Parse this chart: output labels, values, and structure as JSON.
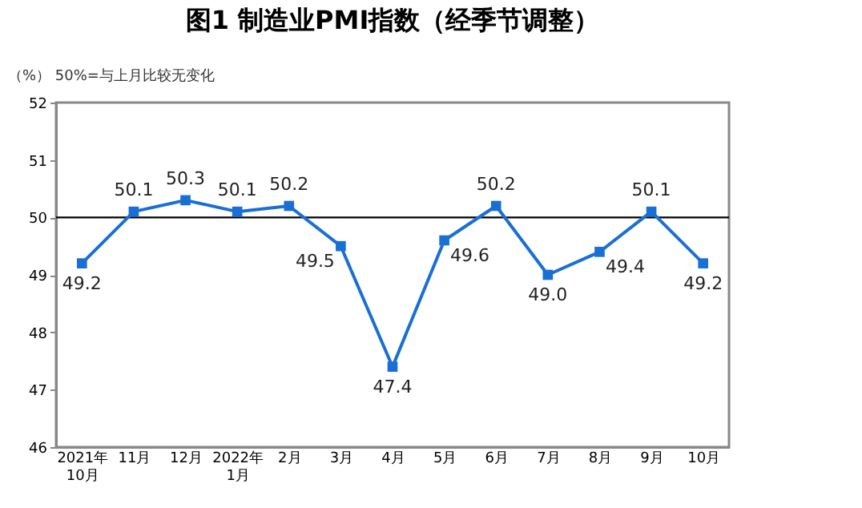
{
  "chart_data": {
    "type": "line",
    "title": "图1 制造业PMI指数（经季节调整）",
    "ylabel": "（%）",
    "annotations": [
      "50%=与上月比较无变化"
    ],
    "categories": [
      "2021年\n10月",
      "11月",
      "12月",
      "2022年\n1月",
      "2月",
      "3月",
      "4月",
      "5月",
      "6月",
      "7月",
      "8月",
      "9月",
      "10月"
    ],
    "series": [
      {
        "color": "#1a6fd4",
        "values": [
          49.2,
          50.1,
          50.3,
          50.1,
          50.2,
          49.5,
          47.4,
          49.6,
          50.2,
          49.0,
          49.4,
          50.1,
          49.2
        ]
      }
    ],
    "ylim": [
      46,
      52
    ],
    "yticks": [
      46,
      47,
      48,
      49,
      50,
      51,
      52
    ],
    "grid": false,
    "marker": "square",
    "line_style": "solid",
    "value_labels": [
      "49.2",
      "50.1",
      "50.3",
      "50.1",
      "50.2",
      "49.5",
      "47.4",
      "49.6",
      "50.2",
      "49.0",
      "49.4",
      "50.1",
      "49.2"
    ],
    "ref_lines": [
      {
        "axis": "y",
        "value": 50,
        "color": "#000000"
      }
    ]
  }
}
